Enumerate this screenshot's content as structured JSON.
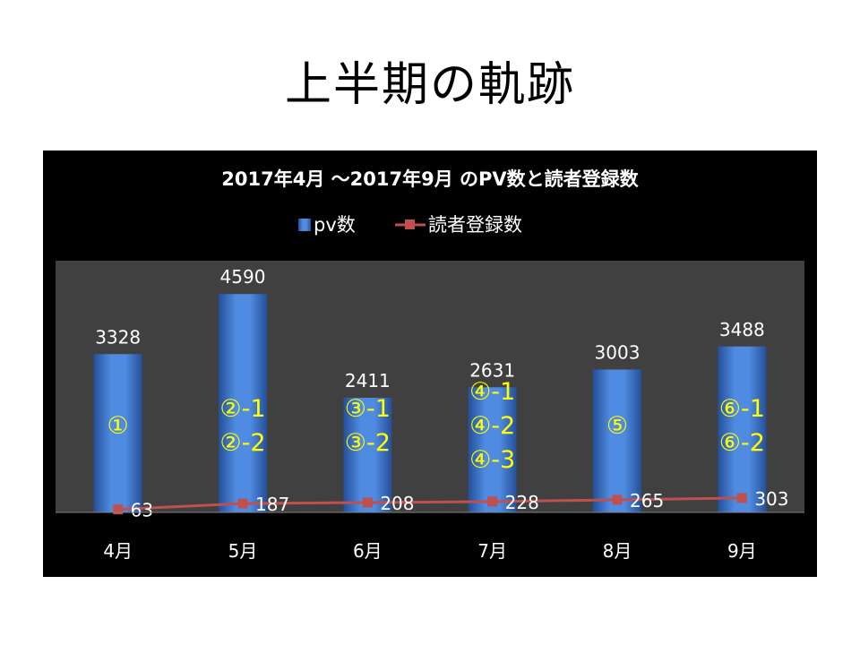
{
  "slide": {
    "title": "上半期の軌跡"
  },
  "chart_data": {
    "type": "bar",
    "title": "2017年4月 ～2017年9月 のPV数と読者登録数",
    "legend_position": "top",
    "categories": [
      "4月",
      "5月",
      "6月",
      "7月",
      "8月",
      "9月"
    ],
    "series": [
      {
        "name": "pv数",
        "type": "bar",
        "color": "#3b73c8",
        "values": [
          3328,
          4590,
          2411,
          2631,
          3003,
          3488
        ]
      },
      {
        "name": "読者登録数",
        "type": "line",
        "color": "#c0504d",
        "values": [
          63,
          187,
          208,
          228,
          265,
          303
        ]
      }
    ],
    "ylim": [
      0,
      5000
    ],
    "grid": false,
    "annotations": [
      [
        "①"
      ],
      [
        "②-1",
        "②-2"
      ],
      [
        "③-1",
        "③-2"
      ],
      [
        "④-1",
        "④-2",
        "④-3"
      ],
      [
        "⑤"
      ],
      [
        "⑥-1",
        "⑥-2"
      ]
    ],
    "annotation_color": "#ffff00"
  }
}
